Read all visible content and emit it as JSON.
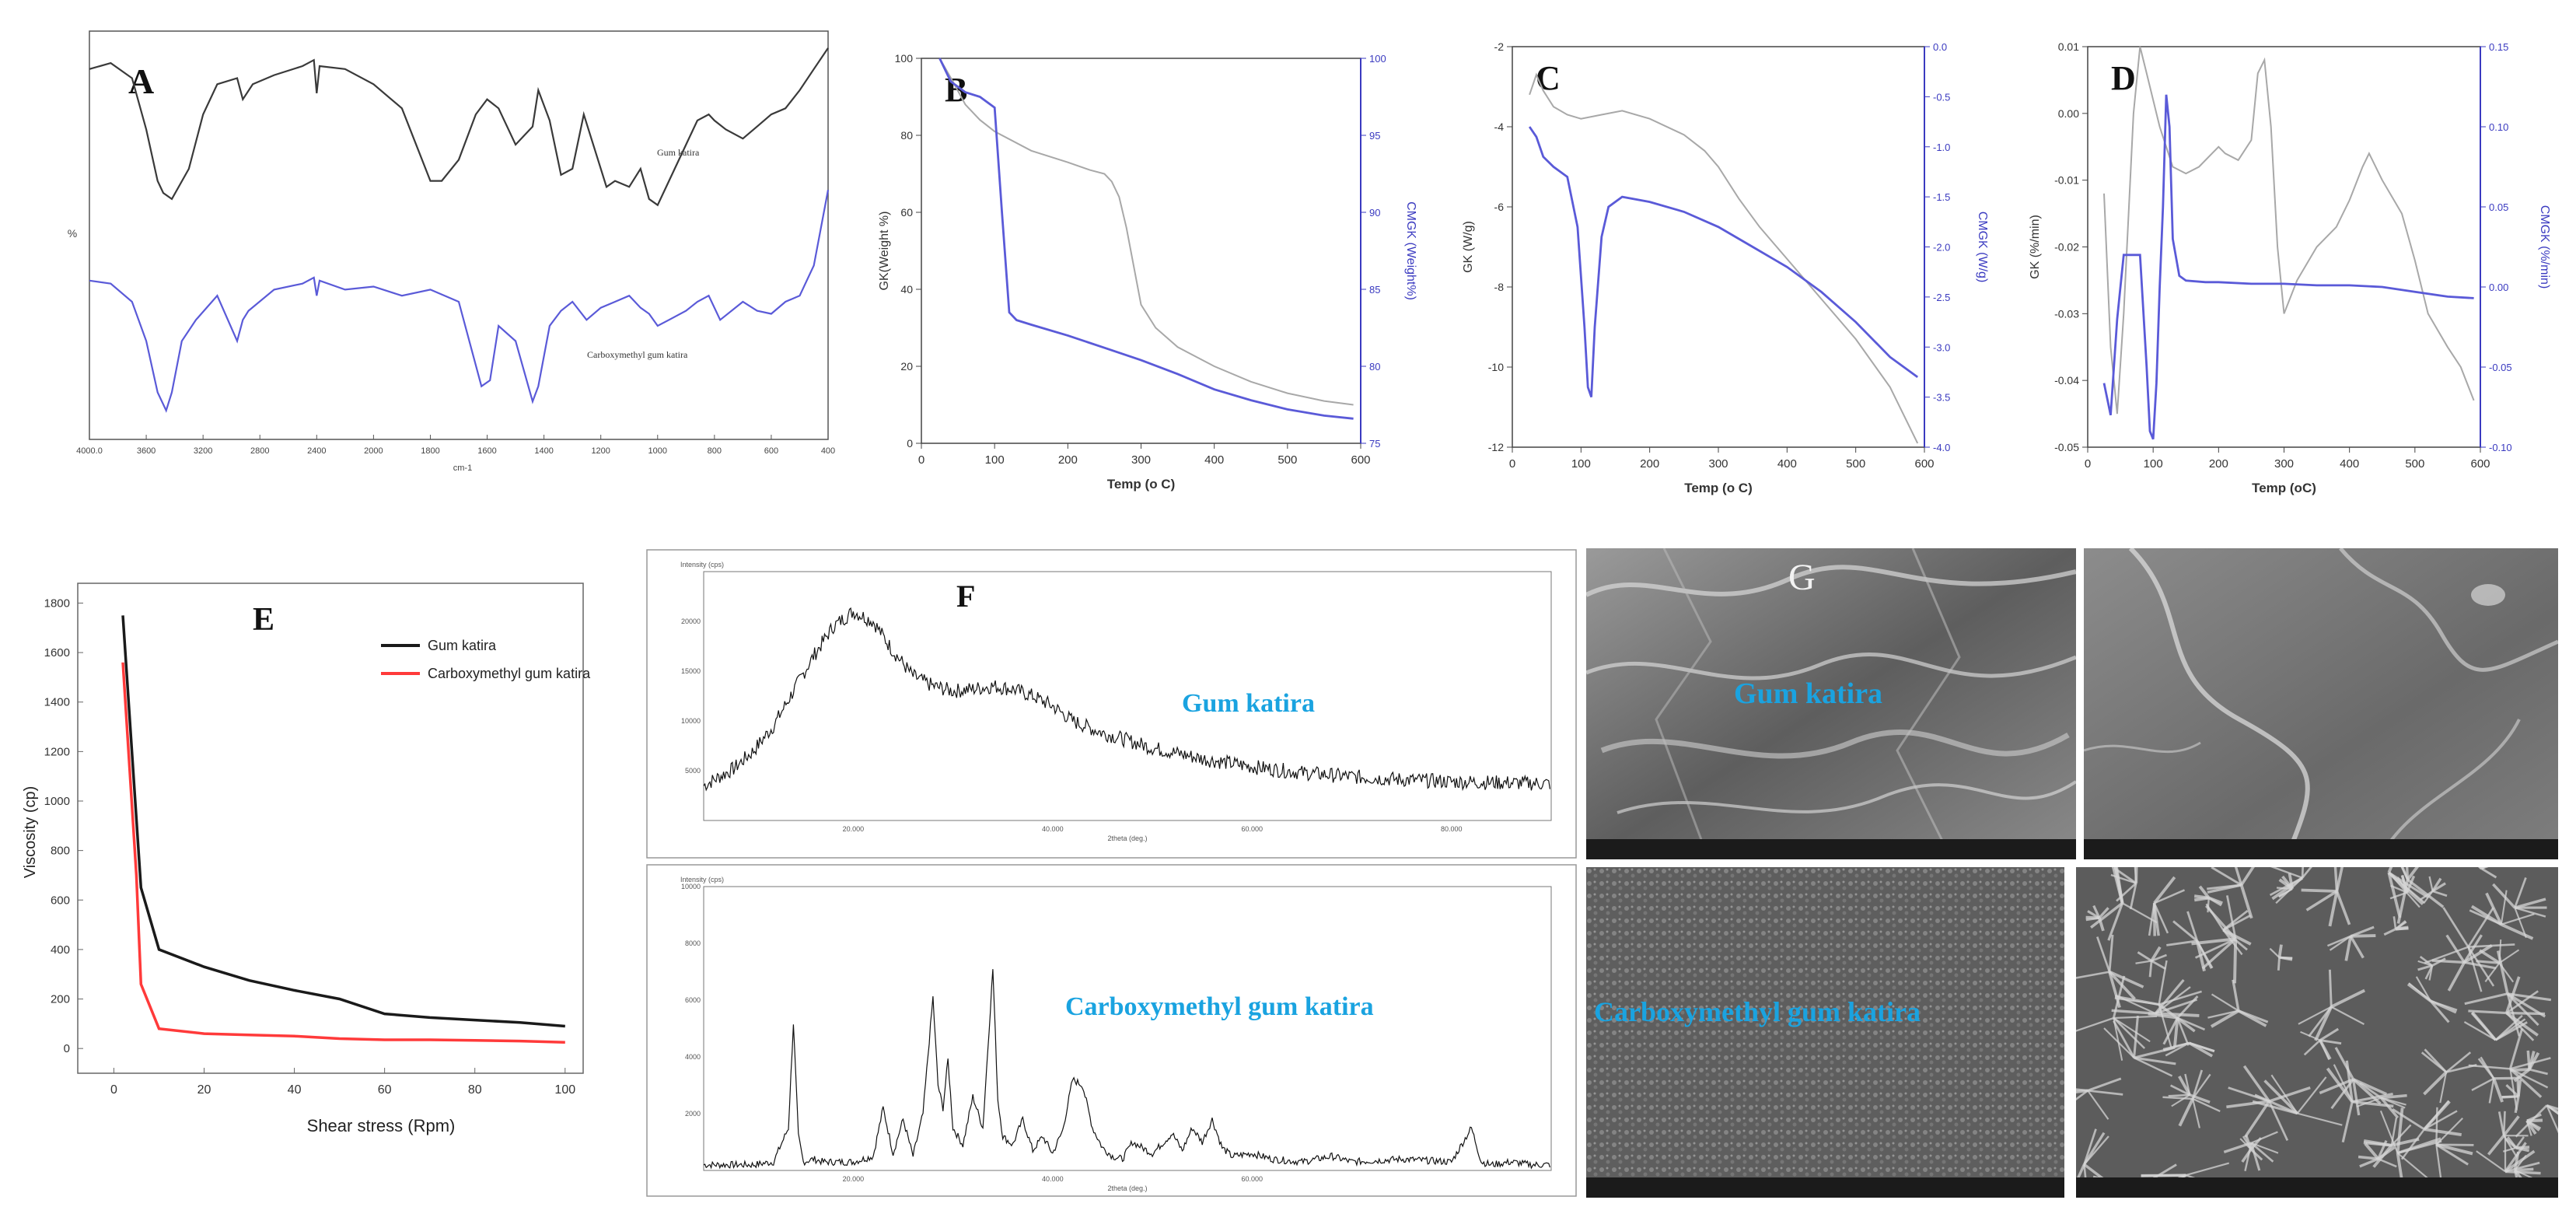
{
  "chart_data": [
    {
      "id": "A",
      "type": "line",
      "panel_label": "A",
      "xlabel": "cm-1",
      "ylabel": "%",
      "x_ticks": [
        "4000.0",
        "3600",
        "3200",
        "2800",
        "2400",
        "2000",
        "1800",
        "1600",
        "1400",
        "1200",
        "1000",
        "800",
        "600",
        "400"
      ],
      "series": [
        {
          "name": "Gum katira",
          "color": "#3a3a3a",
          "x": [
            4000,
            3850,
            3700,
            3600,
            3520,
            3480,
            3420,
            3300,
            3200,
            3100,
            2960,
            2920,
            2850,
            2700,
            2500,
            2420,
            2400,
            2380,
            2200,
            2000,
            1900,
            1800,
            1760,
            1700,
            1640,
            1600,
            1560,
            1500,
            1440,
            1420,
            1380,
            1340,
            1300,
            1260,
            1220,
            1180,
            1150,
            1100,
            1060,
            1030,
            1000,
            960,
            900,
            860,
            820,
            800,
            760,
            700,
            650,
            600,
            550,
            500,
            450,
            400
          ],
          "y": [
            55,
            57,
            52,
            35,
            18,
            14,
            12,
            22,
            40,
            50,
            52,
            45,
            50,
            53,
            56,
            58,
            47,
            56,
            55,
            50,
            42,
            18,
            18,
            25,
            40,
            45,
            42,
            30,
            36,
            48,
            38,
            20,
            22,
            40,
            28,
            16,
            18,
            16,
            22,
            12,
            10,
            18,
            30,
            38,
            40,
            38,
            35,
            32,
            36,
            40,
            42,
            48,
            55,
            62
          ]
        },
        {
          "name": "Carboxymethyl gum katira",
          "color": "#5a5ad8",
          "x": [
            4000,
            3850,
            3700,
            3600,
            3520,
            3460,
            3420,
            3350,
            3250,
            3100,
            2960,
            2920,
            2880,
            2700,
            2500,
            2420,
            2400,
            2380,
            2200,
            2000,
            1900,
            1800,
            1700,
            1620,
            1590,
            1560,
            1500,
            1440,
            1420,
            1380,
            1340,
            1300,
            1250,
            1200,
            1150,
            1100,
            1060,
            1030,
            1000,
            960,
            900,
            860,
            820,
            780,
            700,
            650,
            600,
            550,
            500,
            450,
            400
          ],
          "y": [
            -15,
            -16,
            -22,
            -35,
            -52,
            -58,
            -52,
            -35,
            -28,
            -20,
            -35,
            -28,
            -25,
            -18,
            -16,
            -14,
            -20,
            -15,
            -18,
            -17,
            -20,
            -18,
            -22,
            -50,
            -48,
            -30,
            -35,
            -55,
            -50,
            -30,
            -25,
            -22,
            -28,
            -24,
            -22,
            -20,
            -24,
            -26,
            -30,
            -28,
            -25,
            -22,
            -20,
            -28,
            -22,
            -25,
            -26,
            -22,
            -20,
            -10,
            15
          ]
        }
      ]
    },
    {
      "id": "B",
      "type": "line",
      "panel_label": "B",
      "xlabel": "Temp (o C)",
      "ylabel": "GK(Weight %)",
      "ylabel_right": "CMGK (Weight%)",
      "xlim": [
        0,
        600
      ],
      "ylim": [
        0,
        100
      ],
      "ylim_right": [
        75,
        100
      ],
      "x_ticks": [
        0,
        100,
        200,
        300,
        400,
        500,
        600
      ],
      "y_ticks": [
        0,
        20,
        40,
        60,
        80,
        100
      ],
      "y_ticks_right": [
        75,
        80,
        85,
        90,
        95,
        100
      ],
      "series": [
        {
          "name": "GK",
          "color": "#a8a8a8",
          "x": [
            25,
            40,
            60,
            80,
            100,
            150,
            200,
            230,
            250,
            260,
            270,
            280,
            290,
            300,
            320,
            350,
            400,
            450,
            500,
            550,
            590
          ],
          "y": [
            100,
            95,
            88,
            84,
            81,
            76,
            73,
            71,
            70,
            68,
            64,
            56,
            46,
            36,
            30,
            25,
            20,
            16,
            13,
            11,
            10
          ]
        },
        {
          "name": "CMGK",
          "color": "#5a5ad8",
          "x": [
            25,
            40,
            60,
            80,
            100,
            110,
            120,
            130,
            150,
            200,
            250,
            300,
            350,
            400,
            450,
            500,
            550,
            590
          ],
          "y": [
            100,
            98.5,
            97.8,
            97.5,
            96.8,
            90,
            83.5,
            83,
            82.7,
            82,
            81.2,
            80.4,
            79.5,
            78.5,
            77.8,
            77.2,
            76.8,
            76.6
          ]
        }
      ]
    },
    {
      "id": "C",
      "type": "line",
      "panel_label": "C",
      "xlabel": "Temp (o C)",
      "ylabel": "GK (W/g)",
      "ylabel_right": "CMGK (W/g)",
      "xlim": [
        0,
        600
      ],
      "ylim": [
        -12,
        -2
      ],
      "ylim_right": [
        -4,
        0
      ],
      "x_ticks": [
        0,
        100,
        200,
        300,
        400,
        500,
        600
      ],
      "y_ticks": [
        -12,
        -10,
        -8,
        -6,
        -4,
        -2
      ],
      "y_ticks_right": [
        "-4.0",
        "-3.5",
        "-3.0",
        "-2.5",
        "-2.0",
        "-1.5",
        "-1.0",
        "-0.5",
        "0.0"
      ],
      "series": [
        {
          "name": "GK",
          "color": "#a8a8a8",
          "x": [
            25,
            35,
            45,
            60,
            80,
            100,
            130,
            160,
            200,
            250,
            280,
            300,
            330,
            360,
            400,
            450,
            500,
            550,
            590
          ],
          "y": [
            -3.2,
            -2.7,
            -3.1,
            -3.5,
            -3.7,
            -3.8,
            -3.7,
            -3.6,
            -3.8,
            -4.2,
            -4.6,
            -5.0,
            -5.8,
            -6.5,
            -7.3,
            -8.3,
            -9.3,
            -10.5,
            -11.9
          ]
        },
        {
          "name": "CMGK",
          "color": "#5a5ad8",
          "x": [
            25,
            35,
            45,
            60,
            80,
            95,
            105,
            110,
            115,
            120,
            130,
            140,
            160,
            200,
            250,
            300,
            350,
            400,
            450,
            500,
            550,
            590
          ],
          "y": [
            -0.8,
            -0.9,
            -1.1,
            -1.2,
            -1.3,
            -1.8,
            -2.8,
            -3.4,
            -3.5,
            -2.8,
            -1.9,
            -1.6,
            -1.5,
            -1.55,
            -1.65,
            -1.8,
            -2.0,
            -2.2,
            -2.45,
            -2.75,
            -3.1,
            -3.3
          ]
        }
      ]
    },
    {
      "id": "D",
      "type": "line",
      "panel_label": "D",
      "xlabel": "Temp (oC)",
      "ylabel": "GK (%/min)",
      "ylabel_right": "CMGK (%/min)",
      "xlim": [
        0,
        600
      ],
      "ylim": [
        -0.05,
        0.01
      ],
      "ylim_right": [
        -0.1,
        0.15
      ],
      "x_ticks": [
        0,
        100,
        200,
        300,
        400,
        500,
        600
      ],
      "y_ticks": [
        "-0.05",
        "-0.04",
        "-0.03",
        "-0.02",
        "-0.01",
        "0.00",
        "0.01"
      ],
      "y_ticks_right": [
        "-0.10",
        "-0.05",
        "0.00",
        "0.05",
        "0.10",
        "0.15"
      ],
      "series": [
        {
          "name": "GK",
          "color": "#a8a8a8",
          "x": [
            25,
            35,
            45,
            55,
            70,
            80,
            90,
            110,
            130,
            150,
            170,
            190,
            200,
            210,
            230,
            250,
            260,
            270,
            280,
            290,
            300,
            320,
            350,
            380,
            400,
            420,
            430,
            450,
            480,
            500,
            520,
            550,
            570,
            590
          ],
          "y": [
            -0.012,
            -0.035,
            -0.045,
            -0.03,
            0.0,
            0.01,
            0.006,
            -0.002,
            -0.008,
            -0.009,
            -0.008,
            -0.006,
            -0.005,
            -0.006,
            -0.007,
            -0.004,
            0.006,
            0.008,
            -0.002,
            -0.02,
            -0.03,
            -0.025,
            -0.02,
            -0.017,
            -0.013,
            -0.008,
            -0.006,
            -0.01,
            -0.015,
            -0.022,
            -0.03,
            -0.035,
            -0.038,
            -0.043
          ]
        },
        {
          "name": "CMGK",
          "color": "#5a5ad8",
          "x": [
            25,
            35,
            45,
            55,
            65,
            80,
            90,
            95,
            100,
            105,
            110,
            115,
            120,
            125,
            130,
            140,
            150,
            180,
            200,
            250,
            300,
            350,
            400,
            450,
            500,
            550,
            590
          ],
          "y": [
            -0.06,
            -0.08,
            -0.02,
            0.02,
            0.02,
            0.02,
            -0.05,
            -0.09,
            -0.095,
            -0.06,
            0.0,
            0.05,
            0.12,
            0.1,
            0.03,
            0.007,
            0.004,
            0.003,
            0.003,
            0.002,
            0.002,
            0.001,
            0.001,
            0.0,
            -0.003,
            -0.006,
            -0.007
          ]
        }
      ]
    },
    {
      "id": "E",
      "type": "line",
      "panel_label": "E",
      "xlabel": "Shear stress (Rpm)",
      "ylabel": "Viscosity (cp)",
      "xlim": [
        -8,
        104
      ],
      "ylim": [
        -100,
        1880
      ],
      "x_ticks": [
        0,
        20,
        40,
        60,
        80,
        100
      ],
      "y_ticks": [
        0,
        200,
        400,
        600,
        800,
        1000,
        1200,
        1400,
        1600,
        1800
      ],
      "legend": "top-right",
      "series": [
        {
          "name": "Gum katira",
          "color": "#1a1a1a",
          "x": [
            2,
            6,
            10,
            20,
            30,
            40,
            50,
            60,
            70,
            80,
            90,
            100
          ],
          "y": [
            1750,
            650,
            400,
            330,
            275,
            235,
            200,
            140,
            125,
            115,
            105,
            90
          ]
        },
        {
          "name": "Carboxymethyl gum katira",
          "color": "#ff3a3a",
          "x": [
            2,
            5,
            6,
            10,
            20,
            30,
            40,
            50,
            60,
            70,
            80,
            90,
            100
          ],
          "y": [
            1560,
            700,
            260,
            80,
            60,
            55,
            50,
            40,
            35,
            35,
            33,
            30,
            25
          ]
        }
      ]
    },
    {
      "id": "F1",
      "type": "line",
      "panel_label": "F",
      "ylabel": "Intensity (cps)",
      "xlabel": "2theta (deg.)",
      "annotation": "Gum katira",
      "x_ticks": [
        "20.000",
        "40.000",
        "60.000",
        "80.000"
      ],
      "y_ticks": [
        "5000",
        "10000",
        "15000",
        "20000"
      ],
      "xlim": [
        5,
        90
      ],
      "ylim": [
        0,
        25000
      ],
      "series": [
        {
          "name": "Gum katira",
          "color": "#111111",
          "x": [
            5,
            8,
            10,
            12,
            14,
            16,
            18,
            20,
            22,
            24,
            26,
            28,
            30,
            32,
            34,
            36,
            38,
            40,
            42,
            45,
            50,
            55,
            60,
            65,
            70,
            75,
            80,
            85,
            90
          ],
          "y": [
            3500,
            5200,
            7000,
            9500,
            13000,
            16500,
            19500,
            21000,
            20000,
            17000,
            14500,
            13500,
            13000,
            13200,
            13500,
            13200,
            12500,
            11500,
            10000,
            8800,
            7300,
            6200,
            5400,
            4800,
            4400,
            4100,
            3900,
            3800,
            3700
          ]
        }
      ]
    },
    {
      "id": "F2",
      "type": "line",
      "ylabel": "Intensity (cps)",
      "xlabel": "2theta (deg.)",
      "annotation": "Carboxymethyl gum katira",
      "x_ticks": [
        "20.000",
        "40.000",
        "60.000"
      ],
      "y_ticks": [
        "2000",
        "4000",
        "6000",
        "8000",
        "10000"
      ],
      "xlim": [
        5,
        90
      ],
      "ylim": [
        0,
        10000
      ],
      "series": [
        {
          "name": "Carboxymethyl gum katira",
          "color": "#111111",
          "x": [
            5,
            10,
            12,
            13.5,
            14,
            14.5,
            15,
            16,
            17,
            20,
            22,
            23,
            24,
            25,
            26,
            27,
            28,
            28.5,
            29,
            29.5,
            30,
            31,
            32,
            33,
            34,
            34.5,
            35,
            36,
            37,
            38,
            39,
            40,
            41,
            42,
            43,
            44,
            45,
            46,
            47,
            48,
            50,
            52,
            53,
            54,
            55,
            56,
            57,
            58,
            60,
            62,
            65,
            68,
            70,
            75,
            80,
            82,
            83,
            84,
            86,
            88,
            90
          ],
          "y": [
            200,
            200,
            300,
            1500,
            5200,
            1200,
            300,
            400,
            300,
            300,
            500,
            2200,
            600,
            1800,
            500,
            2000,
            6100,
            3000,
            2200,
            3900,
            1500,
            900,
            2600,
            1500,
            7100,
            2500,
            1200,
            900,
            1800,
            700,
            1200,
            600,
            1400,
            3200,
            3000,
            1500,
            800,
            500,
            400,
            1000,
            600,
            1300,
            700,
            1500,
            1000,
            1800,
            800,
            500,
            600,
            400,
            300,
            500,
            300,
            400,
            300,
            1500,
            300,
            200,
            300,
            200,
            200
          ]
        }
      ]
    }
  ],
  "sem": {
    "label_letter": "G",
    "top_label": "Gum katira",
    "bottom_label": "Carboxymethyl gum katira"
  }
}
